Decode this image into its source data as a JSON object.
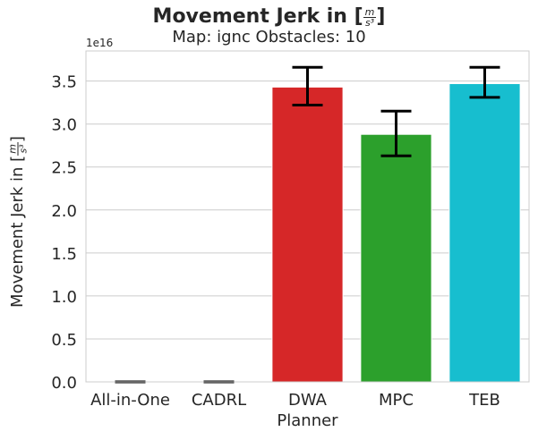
{
  "chart_data": {
    "type": "bar",
    "title_prefix": "Movement Jerk in [",
    "title_suffix": "]",
    "unit_numerator": "m",
    "unit_denominator": "s³",
    "subtitle": "Map: ignc Obstacles: 10",
    "xlabel": "Planner",
    "ylabel_prefix": "Movement Jerk in [",
    "ylabel_suffix": "]",
    "offset_label": "1e16",
    "categories": [
      "All-in-One",
      "CADRL",
      "DWA",
      "MPC",
      "TEB"
    ],
    "values": [
      0,
      0,
      3.43,
      2.88,
      3.47
    ],
    "error_low": [
      0,
      0,
      3.22,
      2.63,
      3.31
    ],
    "error_high": [
      0,
      0,
      3.66,
      3.15,
      3.66
    ],
    "colors": [
      "#1f77b4",
      "#ff7f0e",
      "#d62728",
      "#2ca02c",
      "#17becf"
    ],
    "ylim": [
      0,
      3.85
    ],
    "yticks": [
      0.0,
      0.5,
      1.0,
      1.5,
      2.0,
      2.5,
      3.0,
      3.5
    ],
    "ytick_labels": [
      "0.0",
      "0.5",
      "1.0",
      "1.5",
      "2.0",
      "2.5",
      "3.0",
      "3.5"
    ],
    "grid": true
  }
}
